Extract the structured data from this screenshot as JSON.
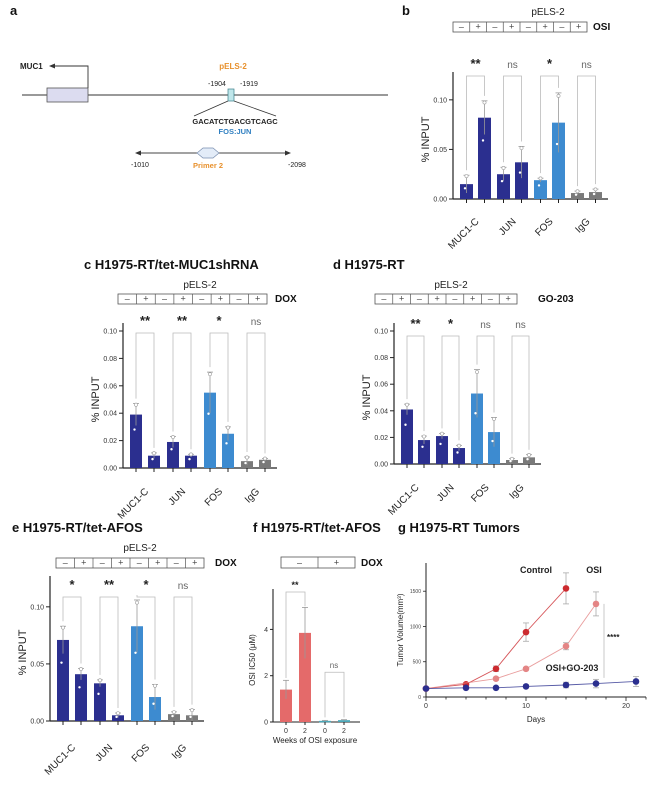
{
  "panel_a": {
    "letter": "a",
    "gene_label": "MUC1",
    "element_label": "pELS-2",
    "pos_left": "-1904",
    "pos_right": "-1919",
    "sequence": "GACATCTGACGTCAGC",
    "motif_label": "FOS:JUN",
    "primer_left": "-1010",
    "primer_right": "-2098",
    "primer_label": "Primer 2",
    "colors": {
      "element": "#e8912d",
      "motif": "#2f7fc1",
      "primer": "#e8912d"
    }
  },
  "chart_data": [
    {
      "id": "b",
      "type": "bar",
      "letter": "b",
      "title": "",
      "subtitle": "pELS-2",
      "treatment": "OSI",
      "treatment_states": [
        "–",
        "+",
        "–",
        "+",
        "–",
        "+",
        "–",
        "+"
      ],
      "categories": [
        "MUC1-C",
        "JUN",
        "FOS",
        "IgG"
      ],
      "ylabel": "% INPUT",
      "ylim": [
        0,
        0.12
      ],
      "yticks": [
        "0.00",
        "0.05",
        "0.10"
      ],
      "ytick_values": [
        0,
        0.05,
        0.1
      ],
      "values": [
        0.015,
        0.082,
        0.025,
        0.037,
        0.019,
        0.077,
        0.006,
        0.007
      ],
      "errors": [
        0.009,
        0.017,
        0.007,
        0.016,
        0.002,
        0.03,
        0.002,
        0.003
      ],
      "colors": [
        "#2b2f8f",
        "#2b2f8f",
        "#2b2f8f",
        "#2b2f8f",
        "#3d8bd0",
        "#3d8bd0",
        "#7a7a7a",
        "#7a7a7a"
      ],
      "significance": [
        "**",
        "ns",
        "*",
        "ns"
      ]
    },
    {
      "id": "c",
      "type": "bar",
      "letter": "c",
      "title": "c H1975-RT/tet-MUC1shRNA",
      "subtitle": "pELS-2",
      "treatment": "DOX",
      "treatment_states": [
        "–",
        "+",
        "–",
        "+",
        "–",
        "+",
        "–",
        "+"
      ],
      "categories": [
        "MUC1-C",
        "JUN",
        "FOS",
        "IgG"
      ],
      "ylabel": "% INPUT",
      "ylim": [
        0,
        0.1
      ],
      "yticks": [
        "0.00",
        "0.02",
        "0.04",
        "0.06",
        "0.08",
        "0.10"
      ],
      "ytick_values": [
        0,
        0.02,
        0.04,
        0.06,
        0.08,
        0.1
      ],
      "values": [
        0.039,
        0.009,
        0.019,
        0.009,
        0.055,
        0.025,
        0.005,
        0.006
      ],
      "errors": [
        0.008,
        0.002,
        0.004,
        0.001,
        0.015,
        0.005,
        0.003,
        0.001
      ],
      "colors": [
        "#2b2f8f",
        "#2b2f8f",
        "#2b2f8f",
        "#2b2f8f",
        "#3d8bd0",
        "#3d8bd0",
        "#7a7a7a",
        "#7a7a7a"
      ],
      "significance": [
        "**",
        "**",
        "*",
        "ns"
      ]
    },
    {
      "id": "d",
      "type": "bar",
      "letter": "d",
      "title": "d H1975-RT",
      "subtitle": "pELS-2",
      "treatment": "GO-203",
      "treatment_states": [
        "–",
        "+",
        "–",
        "+",
        "–",
        "+",
        "–",
        "+"
      ],
      "categories": [
        "MUC1-C",
        "JUN",
        "FOS",
        "IgG"
      ],
      "ylabel": "% INPUT",
      "ylim": [
        0,
        0.1
      ],
      "yticks": [
        "0.00",
        "0.02",
        "0.04",
        "0.06",
        "0.08",
        "0.10"
      ],
      "ytick_values": [
        0,
        0.02,
        0.04,
        0.06,
        0.08,
        0.1
      ],
      "values": [
        0.041,
        0.018,
        0.021,
        0.012,
        0.053,
        0.024,
        0.003,
        0.005
      ],
      "errors": [
        0.004,
        0.003,
        0.002,
        0.002,
        0.018,
        0.011,
        0.001,
        0.002
      ],
      "colors": [
        "#2b2f8f",
        "#2b2f8f",
        "#2b2f8f",
        "#2b2f8f",
        "#3d8bd0",
        "#3d8bd0",
        "#7a7a7a",
        "#7a7a7a"
      ],
      "significance": [
        "**",
        "*",
        "ns",
        "ns"
      ]
    },
    {
      "id": "e",
      "type": "bar",
      "letter": "e",
      "title": "e H1975-RT/tet-AFOS",
      "subtitle": "pELS-2",
      "treatment": "DOX",
      "treatment_states": [
        "–",
        "+",
        "–",
        "+",
        "–",
        "+",
        "–",
        "+"
      ],
      "categories": [
        "MUC1-C",
        "JUN",
        "FOS",
        "IgG"
      ],
      "ylabel": "% INPUT",
      "ylim": [
        0,
        0.12
      ],
      "yticks": [
        "0.00",
        "0.05",
        "0.10"
      ],
      "ytick_values": [
        0,
        0.05,
        0.1
      ],
      "values": [
        0.071,
        0.041,
        0.033,
        0.005,
        0.083,
        0.021,
        0.006,
        0.005
      ],
      "errors": [
        0.012,
        0.005,
        0.003,
        0.002,
        0.023,
        0.011,
        0.002,
        0.005
      ],
      "colors": [
        "#2b2f8f",
        "#2b2f8f",
        "#2b2f8f",
        "#2b2f8f",
        "#3d8bd0",
        "#3d8bd0",
        "#7a7a7a",
        "#7a7a7a"
      ],
      "significance": [
        "*",
        "**",
        "*",
        "ns"
      ]
    },
    {
      "id": "f",
      "type": "bar",
      "letter": "f",
      "title": "f H1975-RT/tet-AFOS",
      "treatment": "DOX",
      "treatment_states": [
        "–",
        "+"
      ],
      "categories": [
        "0",
        "2",
        "0",
        "2"
      ],
      "xlabel": "Weeks of OSI exposure",
      "ylabel": "OSI IC50 (μM)",
      "ylim": [
        0,
        5.4
      ],
      "yticks": [
        "0",
        "2",
        "4"
      ],
      "ytick_values": [
        0,
        2,
        4
      ],
      "values": [
        1.4,
        3.85,
        0.05,
        0.08
      ],
      "errors": [
        0.4,
        1.1,
        0.02,
        0.02
      ],
      "colors": [
        "#e46a6a",
        "#e46a6a",
        "#4aa7b8",
        "#4aa7b8"
      ],
      "significance": [
        "**",
        "ns"
      ]
    },
    {
      "id": "g",
      "type": "line",
      "letter": "g",
      "title": "g H1975-RT Tumors",
      "xlabel": "Days",
      "ylabel": "Tumor Volume(mm³)",
      "xlim": [
        0,
        22
      ],
      "ylim": [
        0,
        1900
      ],
      "xticks": [
        "0",
        "10",
        "20"
      ],
      "xtick_values": [
        0,
        10,
        20
      ],
      "yticks": [
        "0",
        "500",
        "1000",
        "1500"
      ],
      "ytick_values": [
        0,
        500,
        1000,
        1500
      ],
      "series": [
        {
          "name": "Control",
          "color": "#cc2a2f",
          "x": [
            0,
            4,
            7,
            10,
            14
          ],
          "y": [
            120,
            180,
            400,
            920,
            1540
          ],
          "err": [
            0,
            20,
            40,
            130,
            220
          ]
        },
        {
          "name": "OSI",
          "color": "#e48585",
          "x": [
            0,
            7,
            10,
            14,
            17
          ],
          "y": [
            120,
            260,
            400,
            720,
            1320
          ],
          "err": [
            0,
            20,
            20,
            50,
            170
          ]
        },
        {
          "name": "OSI+GO-203",
          "color": "#2b2f8f",
          "x": [
            0,
            4,
            7,
            10,
            14,
            17,
            21
          ],
          "y": [
            120,
            130,
            130,
            150,
            170,
            190,
            220
          ],
          "err": [
            0,
            10,
            10,
            20,
            40,
            60,
            70
          ]
        }
      ],
      "significance": "****"
    }
  ]
}
